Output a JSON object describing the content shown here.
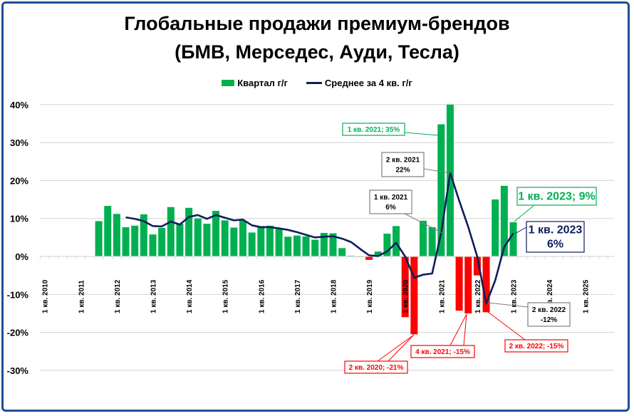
{
  "chart_data": {
    "type": "bar+line",
    "title": "Глобальные продажи премиум-брендов",
    "subtitle": "(БМВ, Мерседес, Ауди, Тесла)",
    "legend_position": "top",
    "grid": true,
    "ylim": [
      -30,
      40
    ],
    "y_ticks": [
      "40%",
      "30%",
      "20%",
      "10%",
      "0%",
      "-10%",
      "-20%",
      "-30%"
    ],
    "x_tick_labels": [
      "1 кв. 2010",
      "1 кв. 2011",
      "1 кв. 2012",
      "1 кв. 2013",
      "1 кв. 2014",
      "1 кв. 2015",
      "1 кв. 2016",
      "1 кв. 2017",
      "1 кв. 2018",
      "1 кв. 2019",
      "1 кв. 2020",
      "1 кв. 2021",
      "1 кв. 2022",
      "1 кв. 2023",
      "1 кв. 2024",
      "1 кв. 2025"
    ],
    "colors": {
      "positive": "#00b050",
      "negative": "#ff0000",
      "line": "#0d1f5c"
    },
    "series": [
      {
        "name": "Квартал г/г",
        "type": "bar",
        "first_quarter": "3 кв. 2011",
        "values": [
          9.3,
          13.3,
          11.2,
          7.7,
          8.1,
          11.1,
          5.8,
          7.5,
          13.0,
          8.6,
          12.8,
          10.0,
          8.6,
          12.0,
          9.5,
          7.6,
          9.4,
          6.3,
          8.0,
          8.1,
          7.4,
          5.2,
          5.5,
          5.3,
          4.4,
          6.2,
          6.1,
          2.2,
          0.2,
          0,
          -0.9,
          1.3,
          6.0,
          8.0,
          -16.0,
          -20.5,
          9.4,
          7.7,
          34.8,
          40.0,
          -14.3,
          -15.0,
          -5.0,
          -14.7,
          15.0,
          18.6,
          9.0
        ]
      },
      {
        "name": "Среднее за 4 кв. г/г",
        "type": "line",
        "first_quarter": "2 кв. 2012",
        "values": [
          10.3,
          9.9,
          9.3,
          8.0,
          7.9,
          9.2,
          8.4,
          10.4,
          10.9,
          9.9,
          10.9,
          10.2,
          9.5,
          9.7,
          8.2,
          7.7,
          7.7,
          7.4,
          7.0,
          6.4,
          5.7,
          5.0,
          5.2,
          5.3,
          4.7,
          3.8,
          2.0,
          0.3,
          0.1,
          1.3,
          3.6,
          0.0,
          -5.6,
          -4.8,
          -4.5,
          6.2,
          22.0,
          14.7,
          7.8,
          0.0,
          -12.4,
          -6.3,
          2.5,
          6.1
        ]
      }
    ],
    "annotations": [
      {
        "text": "1 кв. 2021; 35%",
        "color": "#00b050"
      },
      {
        "text": [
          "2 кв. 2021",
          "22%"
        ],
        "color": "#000000"
      },
      {
        "text": [
          "1 кв. 2021",
          "6%"
        ],
        "color": "#000000"
      },
      {
        "text": "1 кв. 2023; 9%",
        "color": "#00b050"
      },
      {
        "text": [
          "1 кв. 2023",
          "6%"
        ],
        "color": "#0d1f5c"
      },
      {
        "text": [
          "2 кв. 2022",
          "-12%"
        ],
        "color": "#000000"
      },
      {
        "text": "2 кв. 2022; -15%",
        "color": "#ff0000"
      },
      {
        "text": "4 кв. 2021; -15%",
        "color": "#ff0000"
      },
      {
        "text": "2 кв. 2020; -21%",
        "color": "#ff0000"
      }
    ]
  }
}
